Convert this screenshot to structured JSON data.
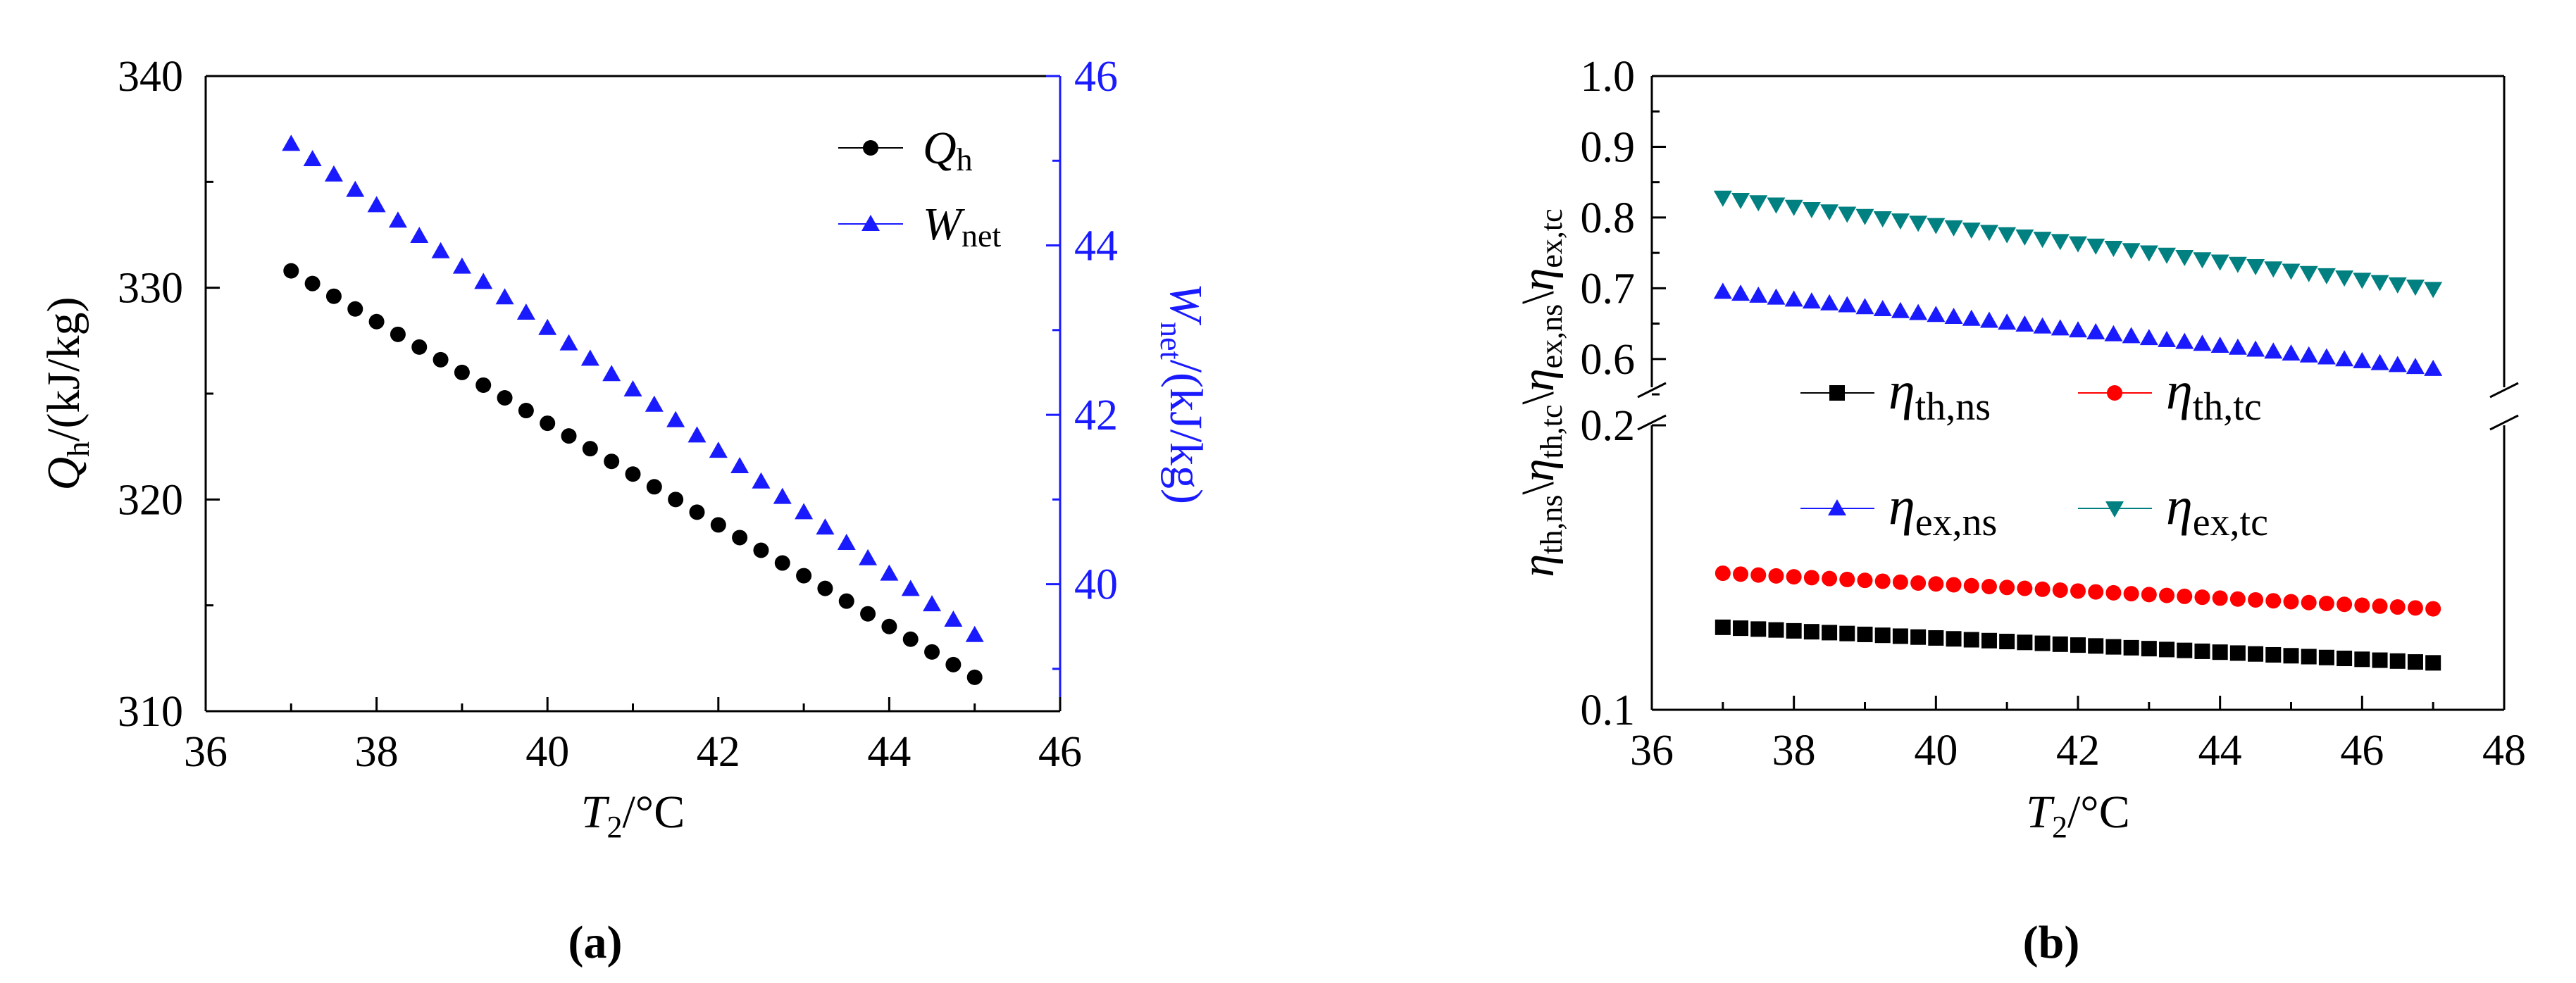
{
  "chart_data": [
    {
      "id": "a",
      "type": "scatter",
      "panel_label": "(a)",
      "xlabel_main": "T",
      "xlabel_sub": "2",
      "xlabel_unit": "/°C",
      "xlim": [
        36,
        46
      ],
      "xticks": [
        36,
        38,
        40,
        42,
        44,
        46
      ],
      "y_left": {
        "label_main": "Q",
        "label_sub": "h",
        "label_unit": "/(kJ/kg)",
        "lim": [
          310,
          340
        ],
        "ticks": [
          310,
          320,
          330,
          340
        ]
      },
      "y_right": {
        "label_main": "W",
        "label_sub": "net",
        "label_unit": "/(kJ/kg)",
        "lim": [
          38.5,
          46
        ],
        "ticks": [
          40,
          42,
          44,
          46
        ],
        "color": "#1a1aff"
      },
      "legend_position": "top-right",
      "series": [
        {
          "name_main": "Q",
          "name_sub": "h",
          "axis": "left",
          "marker": "circle",
          "color": "#000000",
          "x_start": 37,
          "x_end": 45,
          "count": 33,
          "y_start": 330.8,
          "y_end": 311.6
        },
        {
          "name_main": "W",
          "name_sub": "net",
          "axis": "right",
          "marker": "triangle-up",
          "color": "#1a1aff",
          "x_start": 37,
          "x_end": 45,
          "count": 33,
          "y_start": 45.2,
          "y_end": 39.4
        }
      ]
    },
    {
      "id": "b",
      "type": "scatter",
      "panel_label": "(b)",
      "xlabel_main": "T",
      "xlabel_sub": "2",
      "xlabel_unit": "/°C",
      "xlim": [
        36,
        48
      ],
      "xticks": [
        36,
        38,
        40,
        42,
        44,
        46,
        48
      ],
      "ylabel_parts": [
        {
          "main": "η",
          "sub": "th,ns"
        },
        {
          "sep": "\\"
        },
        {
          "main": "η",
          "sub": "th,tc"
        },
        {
          "sep": "\\"
        },
        {
          "main": "η",
          "sub": "ex,ns"
        },
        {
          "sep": "\\"
        },
        {
          "main": "η",
          "sub": "ex,tc"
        }
      ],
      "y_upper": {
        "lim": [
          0.56,
          1.0
        ],
        "ticks": [
          "0.6",
          "0.7",
          "0.8",
          "0.9",
          "1.0"
        ]
      },
      "y_lower": {
        "lim": [
          0.1,
          0.2
        ],
        "ticks": [
          "0.1",
          "0.2"
        ]
      },
      "break_between": [
        0.2,
        0.56
      ],
      "legend_position": "middle",
      "series": [
        {
          "name_main": "η",
          "name_sub": "th,ns",
          "marker": "square",
          "color": "#000000",
          "x_start": 37,
          "x_end": 47,
          "count": 41,
          "y_start": 0.129,
          "y_end": 0.1165
        },
        {
          "name_main": "η",
          "name_sub": "th,tc",
          "marker": "circle",
          "color": "#ff0000",
          "x_start": 37,
          "x_end": 47,
          "count": 41,
          "y_start": 0.148,
          "y_end": 0.1355
        },
        {
          "name_main": "η",
          "name_sub": "ex,ns",
          "marker": "triangle-up",
          "color": "#1a1aff",
          "x_start": 37,
          "x_end": 47,
          "count": 41,
          "y_start": 0.695,
          "y_end": 0.586
        },
        {
          "name_main": "η",
          "name_sub": "ex,tc",
          "marker": "triangle-down",
          "color": "#008080",
          "x_start": 37,
          "x_end": 47,
          "count": 41,
          "y_start": 0.828,
          "y_end": 0.699
        }
      ]
    }
  ]
}
